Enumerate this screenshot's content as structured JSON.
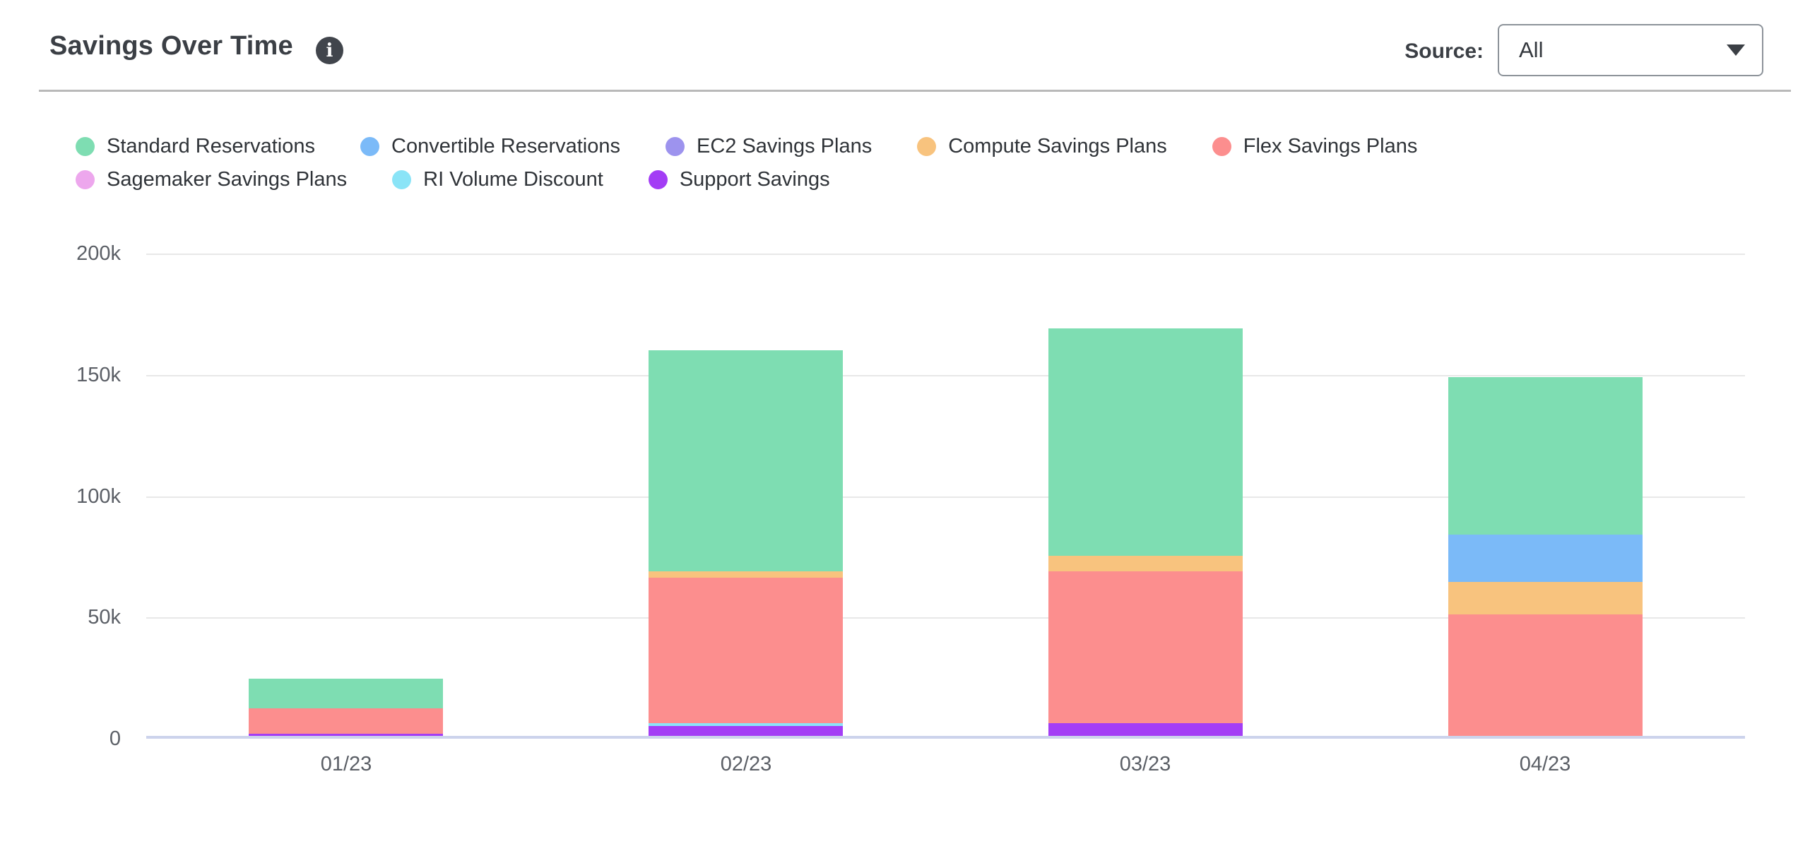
{
  "header": {
    "title": "Savings Over Time",
    "info_icon_glyph": "i",
    "source_label": "Source:",
    "source_value": "All"
  },
  "chart_data": {
    "type": "bar",
    "stacked": true,
    "title": "Savings Over Time",
    "xlabel": "",
    "ylabel": "",
    "categories": [
      "01/23",
      "02/23",
      "03/23",
      "04/23"
    ],
    "series": [
      {
        "name": "Standard Reservations",
        "color": "#7eddb2",
        "values": [
          12000,
          91000,
          94000,
          65000
        ]
      },
      {
        "name": "Convertible Reservations",
        "color": "#7bbaf8",
        "values": [
          0,
          0,
          0,
          19500
        ]
      },
      {
        "name": "EC2 Savings Plans",
        "color": "#9d93ee",
        "values": [
          0,
          0,
          0,
          0
        ]
      },
      {
        "name": "Compute Savings Plans",
        "color": "#f8c37e",
        "values": [
          0,
          2600,
          6400,
          13400
        ]
      },
      {
        "name": "Flex Savings Plans",
        "color": "#fc8e8e",
        "values": [
          10500,
          60000,
          62500,
          50000
        ]
      },
      {
        "name": "Sagemaker Savings Plans",
        "color": "#eda7ed",
        "values": [
          0,
          0,
          0,
          0
        ]
      },
      {
        "name": "RI Volume Discount",
        "color": "#8ae4f7",
        "values": [
          0,
          1300,
          0,
          0
        ]
      },
      {
        "name": "Support Savings",
        "color": "#a33df5",
        "values": [
          1000,
          4000,
          5200,
          0
        ]
      }
    ],
    "stack_order_bottom_to_top": [
      "Support Savings",
      "RI Volume Discount",
      "Sagemaker Savings Plans",
      "Flex Savings Plans",
      "Compute Savings Plans",
      "EC2 Savings Plans",
      "Convertible Reservations",
      "Standard Reservations"
    ],
    "yticks": [
      "200k",
      "150k",
      "100k",
      "50k",
      "0"
    ],
    "ylim": [
      0,
      200000
    ],
    "grid": true,
    "legend_position": "top",
    "grid_color": "#e8e8e8",
    "axis_line_color": "#ccd3ec",
    "tick_text_color": "#5b5f66"
  }
}
